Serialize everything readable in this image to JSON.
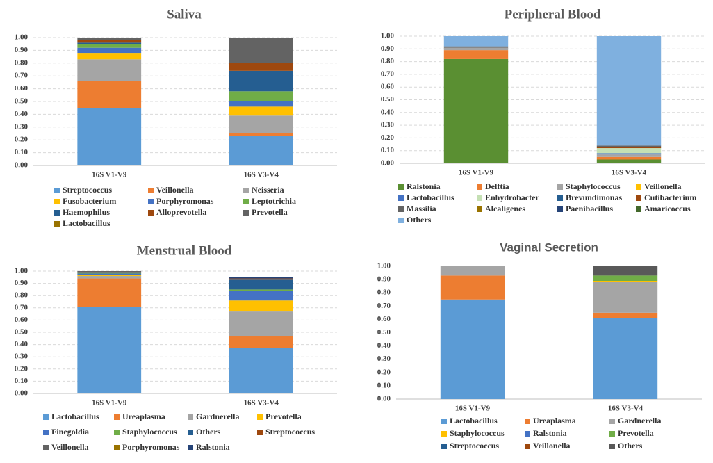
{
  "chart_data": [
    {
      "type": "stacked_bar",
      "title": "Saliva",
      "categories": [
        "16S V1-V9",
        "16S V3-V4"
      ],
      "ylim": [
        0,
        1
      ],
      "yticks": [
        {
          "value": 0,
          "label": "0.00"
        },
        {
          "value": 0.1,
          "label": "0.10"
        },
        {
          "value": 0.2,
          "label": "0.20"
        },
        {
          "value": 0.3,
          "label": "0.30"
        },
        {
          "value": 0.4,
          "label": "0.40"
        },
        {
          "value": 0.5,
          "label": "0.50"
        },
        {
          "value": 0.6,
          "label": "0.60"
        },
        {
          "value": 0.7,
          "label": "0.70"
        },
        {
          "value": 0.8,
          "label": "0.80"
        },
        {
          "value": 0.9,
          "label": "0.90"
        },
        {
          "value": 1,
          "label": "1.00"
        }
      ],
      "grid": true,
      "series": [
        {
          "name": "Streptococcus",
          "color": "#5b9bd5",
          "values": [
            0.45,
            0.23
          ]
        },
        {
          "name": "Veillonella",
          "color": "#ed7d31",
          "values": [
            0.21,
            0.02
          ]
        },
        {
          "name": "Neisseria",
          "color": "#a5a5a5",
          "values": [
            0.17,
            0.14
          ]
        },
        {
          "name": "Fusobacterium",
          "color": "#ffc000",
          "values": [
            0.05,
            0.07
          ]
        },
        {
          "name": "Porphyromonas",
          "color": "#4472c4",
          "values": [
            0.04,
            0.04
          ]
        },
        {
          "name": "Leptotrichia",
          "color": "#70ad47",
          "values": [
            0.03,
            0.08
          ]
        },
        {
          "name": "Haemophilus",
          "color": "#255e91",
          "values": [
            0.01,
            0.16
          ]
        },
        {
          "name": "Alloprevotella",
          "color": "#9e480e",
          "values": [
            0.02,
            0.06
          ]
        },
        {
          "name": "Prevotella",
          "color": "#636363",
          "values": [
            0.02,
            0.2
          ]
        },
        {
          "name": "Lactobacillus",
          "color": "#997300",
          "values": [
            0,
            0
          ]
        }
      ]
    },
    {
      "type": "stacked_bar",
      "title": "Peripheral Blood",
      "categories": [
        "16S V1-V9",
        "16S V3-V4"
      ],
      "ylim": [
        0,
        1
      ],
      "yticks": [
        {
          "value": 0,
          "label": "0.00"
        },
        {
          "value": 0.1,
          "label": "0.10"
        },
        {
          "value": 0.2,
          "label": "0.20"
        },
        {
          "value": 0.3,
          "label": "0.30"
        },
        {
          "value": 0.4,
          "label": "0.40"
        },
        {
          "value": 0.5,
          "label": "0.50"
        },
        {
          "value": 0.6,
          "label": "0.60"
        },
        {
          "value": 0.7,
          "label": "0.70"
        },
        {
          "value": 0.8,
          "label": "0.80"
        },
        {
          "value": 0.9,
          "label": "0.90"
        },
        {
          "value": 1,
          "label": "1.00"
        }
      ],
      "grid": true,
      "series": [
        {
          "name": "Ralstonia",
          "color": "#5a8f32",
          "values": [
            0.82,
            0.03
          ]
        },
        {
          "name": "Delftia",
          "color": "#ed7d31",
          "values": [
            0.07,
            0.02
          ]
        },
        {
          "name": "Staphylococcus",
          "color": "#a5a5a5",
          "values": [
            0.02,
            0.02
          ]
        },
        {
          "name": "Veillonella",
          "color": "#ffc000",
          "values": [
            0,
            0
          ]
        },
        {
          "name": "Lactobacillus",
          "color": "#4472c4",
          "values": [
            0,
            0.01
          ]
        },
        {
          "name": "Enhydrobacter",
          "color": "#c5e0b4",
          "values": [
            0,
            0.04
          ]
        },
        {
          "name": "Brevundimonas",
          "color": "#255e91",
          "values": [
            0,
            0
          ]
        },
        {
          "name": "Cutibacterium",
          "color": "#9e480e",
          "values": [
            0,
            0.01
          ]
        },
        {
          "name": "Massilia",
          "color": "#636363",
          "values": [
            0.01,
            0.01
          ]
        },
        {
          "name": "Alcaligenes",
          "color": "#997300",
          "values": [
            0,
            0
          ]
        },
        {
          "name": "Paenibacillus",
          "color": "#264478",
          "values": [
            0,
            0
          ]
        },
        {
          "name": "Amaricoccus",
          "color": "#43682b",
          "values": [
            0,
            0
          ]
        },
        {
          "name": "Others",
          "color": "#7fb0df",
          "values": [
            0.08,
            0.86
          ]
        }
      ]
    },
    {
      "type": "stacked_bar",
      "title": "Menstrual Blood",
      "categories": [
        "16S V1-V9",
        "16S V3-V4"
      ],
      "ylim": [
        0,
        1
      ],
      "yticks": [
        {
          "value": 0,
          "label": "0.00"
        },
        {
          "value": 0.1,
          "label": "0.10"
        },
        {
          "value": 0.2,
          "label": "0.20"
        },
        {
          "value": 0.3,
          "label": "0.30"
        },
        {
          "value": 0.4,
          "label": "0.40"
        },
        {
          "value": 0.5,
          "label": "0.50"
        },
        {
          "value": 0.6,
          "label": "0.60"
        },
        {
          "value": 0.7,
          "label": "0.70"
        },
        {
          "value": 0.8,
          "label": "0.80"
        },
        {
          "value": 0.9,
          "label": "0.90"
        },
        {
          "value": 1,
          "label": "1.00"
        }
      ],
      "grid": true,
      "series": [
        {
          "name": "Lactobacillus",
          "color": "#5b9bd5",
          "values": [
            0.71,
            0.37
          ]
        },
        {
          "name": "Ureaplasma",
          "color": "#ed7d31",
          "values": [
            0.23,
            0.1
          ]
        },
        {
          "name": "Gardnerella",
          "color": "#a5a5a5",
          "values": [
            0.02,
            0.2
          ]
        },
        {
          "name": "Prevotella",
          "color": "#ffc000",
          "values": [
            0.01,
            0.09
          ]
        },
        {
          "name": "Finegoldia",
          "color": "#4472c4",
          "values": [
            0.01,
            0.08
          ]
        },
        {
          "name": "Staphylococcus",
          "color": "#70ad47",
          "values": [
            0.01,
            0.01
          ]
        },
        {
          "name": "Others",
          "color": "#255e91",
          "values": [
            0,
            0.08
          ]
        },
        {
          "name": "Streptococcus",
          "color": "#9e480e",
          "values": [
            0,
            0.01
          ]
        },
        {
          "name": "Veillonella",
          "color": "#636363",
          "values": [
            0.01,
            0
          ]
        },
        {
          "name": "Porphyromonas",
          "color": "#997300",
          "values": [
            0,
            0
          ]
        },
        {
          "name": "Ralstonia",
          "color": "#264478",
          "values": [
            0,
            0.01
          ]
        }
      ]
    },
    {
      "type": "stacked_bar",
      "title": "Vaginal Secretion",
      "categories": [
        "16S V1-V9",
        "16S V3-V4"
      ],
      "ylim": [
        0,
        1
      ],
      "yticks": [
        {
          "value": 0,
          "label": "0.00"
        },
        {
          "value": 0.1,
          "label": "0.10"
        },
        {
          "value": 0.2,
          "label": "0.20"
        },
        {
          "value": 0.3,
          "label": "0.30"
        },
        {
          "value": 0.4,
          "label": "0.40"
        },
        {
          "value": 0.5,
          "label": "0.50"
        },
        {
          "value": 0.6,
          "label": "0.60"
        },
        {
          "value": 0.7,
          "label": "0.70"
        },
        {
          "value": 0.8,
          "label": "0.80"
        },
        {
          "value": 0.9,
          "label": "0.90"
        },
        {
          "value": 1,
          "label": "1.00"
        }
      ],
      "grid": false,
      "series": [
        {
          "name": "Lactobacillus",
          "color": "#5b9bd5",
          "values": [
            0.75,
            0.61
          ]
        },
        {
          "name": "Ureaplasma",
          "color": "#ed7d31",
          "values": [
            0.18,
            0.04
          ]
        },
        {
          "name": "Gardnerella",
          "color": "#a5a5a5",
          "values": [
            0.07,
            0.23
          ]
        },
        {
          "name": "Staphylococcus",
          "color": "#ffc000",
          "values": [
            0,
            0.01
          ]
        },
        {
          "name": "Ralstonia",
          "color": "#4472c4",
          "values": [
            0,
            0
          ]
        },
        {
          "name": "Prevotella",
          "color": "#70ad47",
          "values": [
            0,
            0.04
          ]
        },
        {
          "name": "Streptococcus",
          "color": "#255e91",
          "values": [
            0,
            0
          ]
        },
        {
          "name": "Veillonella",
          "color": "#9e480e",
          "values": [
            0,
            0
          ]
        },
        {
          "name": "Others",
          "color": "#595959",
          "values": [
            0,
            0.07
          ]
        }
      ]
    }
  ]
}
